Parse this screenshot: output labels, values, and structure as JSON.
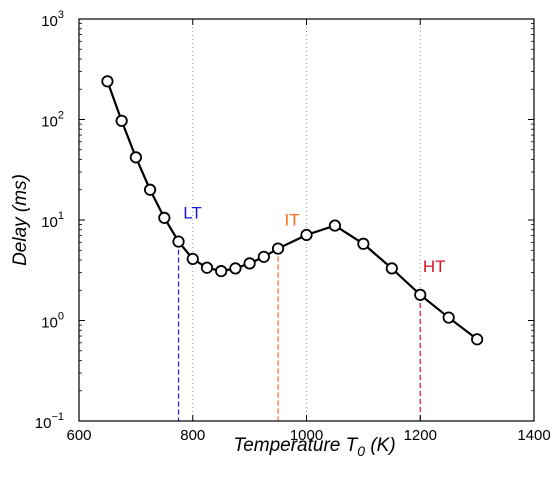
{
  "chart_data": {
    "type": "line",
    "title": "",
    "xlabel_main": "Temperature T",
    "xlabel_sub": "0",
    "xlabel_tail": " (K)",
    "ylabel": "Delay (ms)",
    "xlim": [
      600,
      1400
    ],
    "ylim": [
      0.1,
      1000
    ],
    "yscale": "log",
    "x_ticks": [
      {
        "value": 600,
        "label": "600"
      },
      {
        "value": 800,
        "label": "800"
      },
      {
        "value": 1000,
        "label": "1000"
      },
      {
        "value": 1200,
        "label": "1200"
      },
      {
        "value": 1400,
        "label": "1400"
      }
    ],
    "y_ticks": [
      {
        "value": 0.1,
        "base": "10",
        "exp": "−1"
      },
      {
        "value": 1,
        "base": "10",
        "exp": "0"
      },
      {
        "value": 10,
        "base": "10",
        "exp": "1"
      },
      {
        "value": 100,
        "base": "10",
        "exp": "2"
      },
      {
        "value": 1000,
        "base": "10",
        "exp": "3"
      }
    ],
    "vertical_gridlines_dotted": [
      800,
      1000,
      1200
    ],
    "series": [
      {
        "x": [
          650,
          675,
          700,
          725,
          750,
          775,
          800,
          825,
          850,
          875,
          900,
          925,
          950,
          1000,
          1050,
          1100,
          1150,
          1200,
          1250,
          1300
        ],
        "y": [
          240,
          97,
          42,
          20,
          10.5,
          6.1,
          4.1,
          3.35,
          3.1,
          3.3,
          3.7,
          4.3,
          5.2,
          7.1,
          8.8,
          5.8,
          3.3,
          1.8,
          1.07,
          0.65
        ]
      }
    ],
    "annotations": [
      {
        "text": "LT",
        "x": 775,
        "y": 6.1,
        "color": "#1a1acc"
      },
      {
        "text": "IT",
        "x": 950,
        "y": 5.2,
        "color": "#ff6a1a"
      },
      {
        "text": "HT",
        "x": 1200,
        "y": 1.8,
        "color": "#dd1122"
      }
    ]
  }
}
